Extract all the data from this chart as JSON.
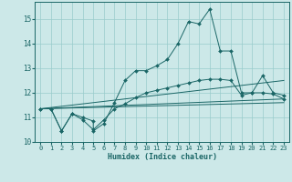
{
  "xlabel": "Humidex (Indice chaleur)",
  "background_color": "#cce8e8",
  "grid_color": "#99cccc",
  "line_color": "#1a6666",
  "xlim": [
    -0.5,
    23.5
  ],
  "ylim": [
    10.0,
    15.7
  ],
  "yticks": [
    10,
    11,
    12,
    13,
    14,
    15
  ],
  "xticks": [
    0,
    1,
    2,
    3,
    4,
    5,
    6,
    7,
    8,
    9,
    10,
    11,
    12,
    13,
    14,
    15,
    16,
    17,
    18,
    19,
    20,
    21,
    22,
    23
  ],
  "series": [
    {
      "x": [
        0,
        1,
        2,
        3,
        4,
        5,
        5,
        6,
        7,
        8,
        9,
        10,
        11,
        12,
        13,
        14,
        15,
        16,
        17,
        18,
        19,
        20,
        21,
        22,
        23
      ],
      "y": [
        11.35,
        11.35,
        10.45,
        11.15,
        11.0,
        10.85,
        10.45,
        10.75,
        11.6,
        12.5,
        12.9,
        12.9,
        13.1,
        13.35,
        14.0,
        14.9,
        14.8,
        15.4,
        13.7,
        13.7,
        12.0,
        12.0,
        12.7,
        12.0,
        11.9
      ],
      "has_markers": true
    },
    {
      "x": [
        0,
        1,
        2,
        3,
        4,
        5,
        6,
        7,
        8,
        9,
        10,
        11,
        12,
        13,
        14,
        15,
        16,
        17,
        18,
        19,
        20,
        21,
        22,
        23
      ],
      "y": [
        11.35,
        11.35,
        10.45,
        11.15,
        10.9,
        10.5,
        10.9,
        11.35,
        11.55,
        11.8,
        12.0,
        12.1,
        12.2,
        12.3,
        12.4,
        12.5,
        12.55,
        12.55,
        12.5,
        11.9,
        12.0,
        12.0,
        11.95,
        11.75
      ],
      "has_markers": true
    },
    {
      "x": [
        0,
        23
      ],
      "y": [
        11.35,
        12.5
      ],
      "has_markers": false
    },
    {
      "x": [
        0,
        23
      ],
      "y": [
        11.35,
        11.75
      ],
      "has_markers": false
    },
    {
      "x": [
        0,
        23
      ],
      "y": [
        11.35,
        11.6
      ],
      "has_markers": false
    }
  ]
}
